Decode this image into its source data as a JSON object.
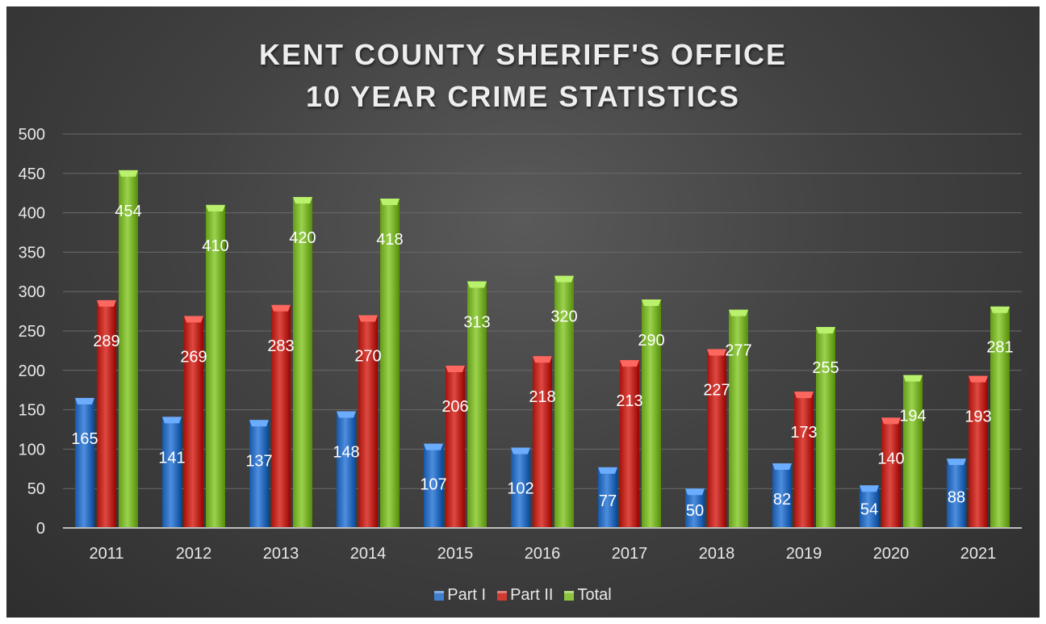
{
  "chart_data": {
    "type": "bar",
    "title": [
      "KENT COUNTY SHERIFF'S OFFICE",
      "10 YEAR CRIME STATISTICS"
    ],
    "categories": [
      "2011",
      "2012",
      "2013",
      "2014",
      "2015",
      "2016",
      "2017",
      "2018",
      "2019",
      "2020",
      "2021"
    ],
    "series": [
      {
        "name": "Part I",
        "color": "#3f7fd0",
        "values": [
          165,
          141,
          137,
          148,
          107,
          102,
          77,
          50,
          82,
          54,
          88
        ]
      },
      {
        "name": "Part II",
        "color": "#cf3a32",
        "values": [
          289,
          269,
          283,
          270,
          206,
          218,
          213,
          227,
          173,
          140,
          193
        ]
      },
      {
        "name": "Total",
        "color": "#8cc43f",
        "values": [
          454,
          410,
          420,
          418,
          313,
          320,
          290,
          277,
          255,
          194,
          281
        ]
      }
    ],
    "ylim": [
      0,
      500
    ],
    "yticks": [
      0,
      50,
      100,
      150,
      200,
      250,
      300,
      350,
      400,
      450,
      500
    ],
    "xlabel": "",
    "ylabel": "",
    "grid": true,
    "legend_position": "bottom"
  }
}
